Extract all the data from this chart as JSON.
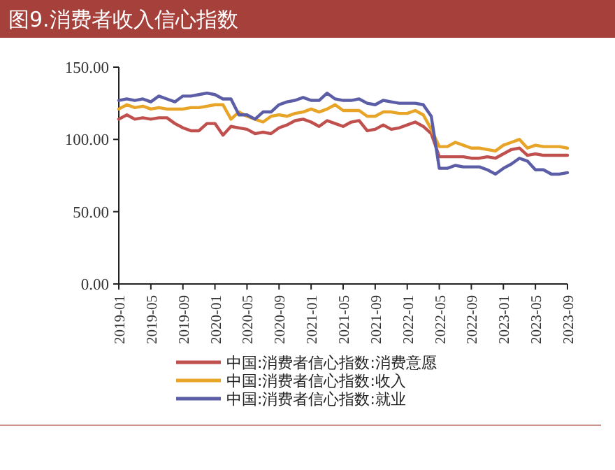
{
  "chart_data": {
    "type": "line",
    "title": "图9.消费者收入信心指数",
    "x": [
      "2019-01",
      "2019-02",
      "2019-03",
      "2019-04",
      "2019-05",
      "2019-06",
      "2019-07",
      "2019-08",
      "2019-09",
      "2019-10",
      "2019-11",
      "2019-12",
      "2020-01",
      "2020-02",
      "2020-03",
      "2020-04",
      "2020-05",
      "2020-06",
      "2020-07",
      "2020-08",
      "2020-09",
      "2020-10",
      "2020-11",
      "2020-12",
      "2021-01",
      "2021-02",
      "2021-03",
      "2021-04",
      "2021-05",
      "2021-06",
      "2021-07",
      "2021-08",
      "2021-09",
      "2021-10",
      "2021-11",
      "2021-12",
      "2022-01",
      "2022-02",
      "2022-03",
      "2022-04",
      "2022-05",
      "2022-06",
      "2022-07",
      "2022-08",
      "2022-09",
      "2022-10",
      "2022-11",
      "2022-12",
      "2023-01",
      "2023-02",
      "2023-03",
      "2023-04",
      "2023-05",
      "2023-06",
      "2023-07",
      "2023-08",
      "2023-09"
    ],
    "series": [
      {
        "name": "中国:消费者信心指数:消费意愿",
        "color": "#c0504d",
        "values": [
          114,
          117,
          114,
          115,
          114,
          115,
          115,
          111,
          108,
          106,
          106,
          111,
          111,
          103,
          109,
          108,
          107,
          104,
          105,
          104,
          108,
          110,
          113,
          114,
          112,
          109,
          113,
          111,
          109,
          112,
          113,
          106,
          107,
          110,
          107,
          108,
          110,
          112,
          109,
          104,
          88,
          88,
          88,
          88,
          87,
          87,
          88,
          87,
          90,
          93,
          94,
          89,
          90,
          89,
          89,
          89,
          89
        ]
      },
      {
        "name": "中国:消费者信心指数:收入",
        "color": "#e8a427",
        "values": [
          121,
          124,
          122,
          123,
          121,
          122,
          121,
          121,
          121,
          122,
          122,
          123,
          124,
          124,
          114,
          119,
          116,
          114,
          112,
          116,
          117,
          116,
          118,
          119,
          121,
          119,
          121,
          124,
          120,
          120,
          120,
          116,
          116,
          119,
          119,
          118,
          118,
          120,
          117,
          107,
          95,
          95,
          98,
          96,
          94,
          94,
          93,
          92,
          96,
          98,
          100,
          94,
          96,
          95,
          95,
          95,
          94
        ]
      },
      {
        "name": "中国:消费者信心指数:就业",
        "color": "#5b5ea6",
        "values": [
          127,
          128,
          127,
          128,
          126,
          130,
          128,
          126,
          130,
          130,
          131,
          132,
          131,
          128,
          128,
          117,
          117,
          114,
          119,
          119,
          124,
          126,
          127,
          129,
          127,
          127,
          132,
          128,
          127,
          127,
          128,
          125,
          124,
          127,
          126,
          125,
          125,
          125,
          124,
          116,
          80,
          80,
          82,
          81,
          81,
          81,
          79,
          76,
          80,
          83,
          87,
          85,
          79,
          79,
          76,
          76,
          77
        ]
      }
    ],
    "xlim": [
      "2019-01",
      "2023-09"
    ],
    "xticks": [
      "2019-01",
      "2019-05",
      "2019-09",
      "2020-01",
      "2020-05",
      "2020-09",
      "2021-01",
      "2021-05",
      "2021-09",
      "2022-01",
      "2022-05",
      "2022-09",
      "2023-01",
      "2023-05",
      "2023-09"
    ],
    "ylim": [
      0,
      150
    ],
    "yticks": [
      {
        "value": 0,
        "label": "0.00"
      },
      {
        "value": 50,
        "label": "50.00"
      },
      {
        "value": 100,
        "label": "100.00"
      },
      {
        "value": 150,
        "label": "150.00"
      }
    ],
    "legend": "bottom",
    "grid": false,
    "marker": "none",
    "line_style": "solid"
  }
}
